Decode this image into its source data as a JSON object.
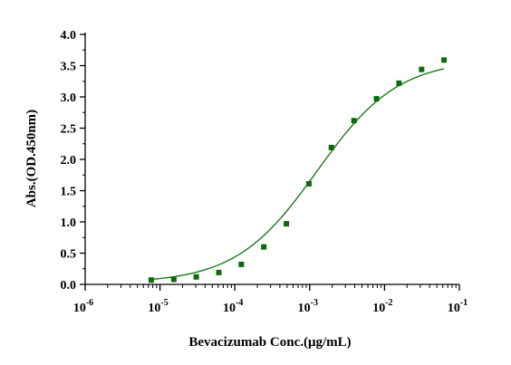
{
  "chart_data": {
    "type": "scatter",
    "xlabel": "Bevacizumab Conc.(μg/mL)",
    "ylabel": "Abs.(OD.450nm)",
    "x_scale": "log",
    "xlim": [
      1e-06,
      0.1
    ],
    "ylim": [
      0,
      4.0
    ],
    "x_tick_labels": [
      {
        "base": "10",
        "exp": "-6"
      },
      {
        "base": "10",
        "exp": "-5"
      },
      {
        "base": "10",
        "exp": "-4"
      },
      {
        "base": "10",
        "exp": "-3"
      },
      {
        "base": "10",
        "exp": "-2"
      },
      {
        "base": "10",
        "exp": "-1"
      }
    ],
    "y_tick_labels": [
      "0.0",
      "0.5",
      "1.0",
      "1.5",
      "2.0",
      "2.5",
      "3.0",
      "3.5",
      "4.0"
    ],
    "grid": false,
    "colors": {
      "series": "#0b6b0b",
      "fit": "#1a7a1a",
      "axis": "#000000"
    },
    "series": [
      {
        "marker": "square",
        "x": [
          7.63e-06,
          1.53e-05,
          3.05e-05,
          6.1e-05,
          0.000122,
          0.000244,
          0.000488,
          0.000977,
          0.00195,
          0.00391,
          0.00781,
          0.0156,
          0.0313,
          0.0625
        ],
        "y": [
          0.07,
          0.08,
          0.12,
          0.19,
          0.32,
          0.6,
          0.97,
          1.61,
          2.19,
          2.62,
          2.97,
          3.22,
          3.44,
          3.59
        ]
      }
    ],
    "fit": {
      "model": "4PL",
      "bottom": 0.02,
      "top": 3.6,
      "ec50": 0.00125,
      "hill": 0.8
    }
  }
}
